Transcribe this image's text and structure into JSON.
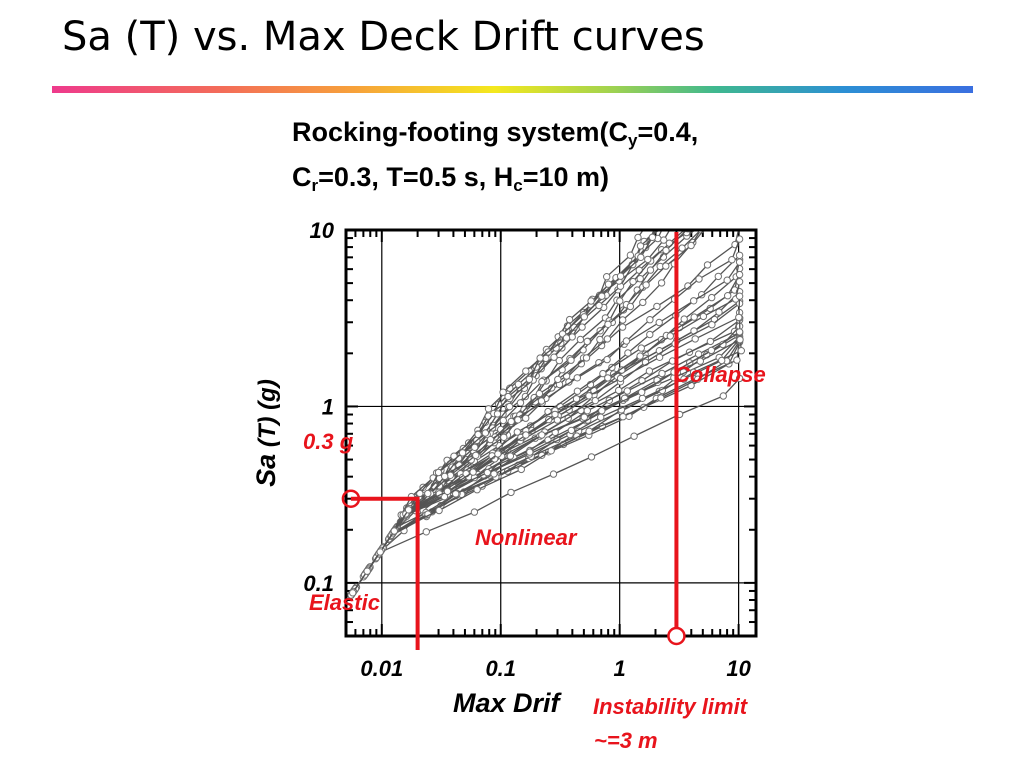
{
  "slide": {
    "title": "Sa (T) vs. Max Deck Drift curves"
  },
  "heading": {
    "line1_prefix": "Rocking-footing system(C",
    "line1_sub": "y",
    "line1_suffix": "=0.4,",
    "line2_a": "C",
    "line2_sub_r": "r",
    "line2_b": "=0.3, T=0.5 s, H",
    "line2_sub_c": "c",
    "line2_c": "=10 m)"
  },
  "chart_data": {
    "type": "line",
    "xscale": "log",
    "yscale": "log",
    "xlim": [
      0.005,
      14
    ],
    "ylim": [
      0.05,
      10
    ],
    "grid": true,
    "xlabel": "Max Drif",
    "ylabel_main": "Sa",
    "ylabel_rest": " (T) (g)",
    "xtick_labels": [
      {
        "value": 0.01,
        "label": "0.01"
      },
      {
        "value": 0.1,
        "label": "0.1"
      },
      {
        "value": 1,
        "label": "1"
      },
      {
        "value": 10,
        "label": "10"
      }
    ],
    "ytick_labels": [
      {
        "value": 0.1,
        "label": "0.1"
      },
      {
        "value": 1,
        "label": "1"
      },
      {
        "value": 10,
        "label": "10"
      }
    ],
    "series_color": "#555555",
    "marker_color": "#707070",
    "curve_count": 40,
    "curve_shape": {
      "elastic_slope": 1.0,
      "elastic_end": [
        0.02,
        0.3
      ],
      "start_drift": 0.0055,
      "sa_step": 1.25
    },
    "annotations": {
      "color": "#e8141c",
      "elastic_point": {
        "x": 0.0055,
        "y": 0.3
      },
      "elastic_knee": {
        "x": 0.02,
        "y": 0.3
      },
      "instability_x": 3.0,
      "labels": {
        "sa_level": "0.3 g",
        "elastic": "Elastic",
        "nonlinear": "Nonlinear",
        "collapse": "Collapse",
        "instability_line1": "Instability limit",
        "instability_line2": "~=3 m"
      }
    }
  }
}
